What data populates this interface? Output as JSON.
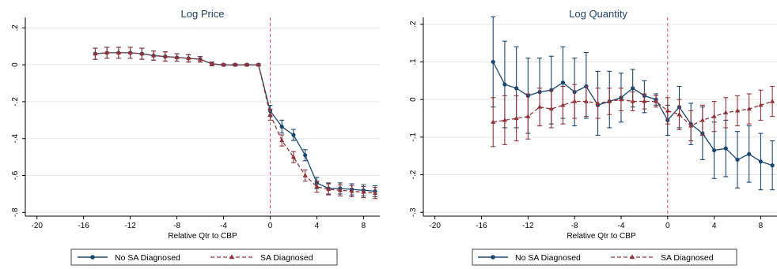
{
  "chart_data": [
    {
      "type": "line",
      "title": "Log Price",
      "xlabel": "Relative Qtr to CBP",
      "ylabel": "",
      "xlim": [
        -21,
        9.4
      ],
      "ylim": [
        -0.82,
        0.24
      ],
      "xticks": [
        -20,
        -16,
        -12,
        -8,
        -4,
        0,
        4,
        8
      ],
      "xtick_labels": [
        "-20",
        "-16",
        "-12",
        "-8",
        "-4",
        "0",
        "4",
        "8"
      ],
      "yticks": [
        0.2,
        0,
        -0.2,
        -0.4,
        -0.6,
        -0.8
      ],
      "ytick_labels": [
        ".2",
        "0",
        "-.2",
        "-.4",
        "-.6",
        "-.8"
      ],
      "grid": true,
      "vline": 0,
      "x": [
        -15,
        -14,
        -13,
        -12,
        -11,
        -10,
        -9,
        -8,
        -7,
        -6,
        -5,
        -4,
        -3,
        -2,
        -1,
        0,
        1,
        2,
        3,
        4,
        5,
        6,
        7,
        8,
        9
      ],
      "series": [
        {
          "name": "No SA Diagnosed",
          "color": "#1a476f",
          "style": "solid",
          "marker": "circle",
          "values": [
            0.06,
            0.065,
            0.065,
            0.065,
            0.06,
            0.05,
            0.045,
            0.04,
            0.035,
            0.03,
            0.005,
            0.0,
            0.0,
            0.0,
            0.0,
            -0.25,
            -0.335,
            -0.38,
            -0.49,
            -0.64,
            -0.67,
            -0.67,
            -0.675,
            -0.68,
            -0.685
          ],
          "ci_low": [
            0.03,
            0.035,
            0.035,
            0.035,
            0.03,
            0.025,
            0.02,
            0.02,
            0.015,
            0.015,
            -0.005,
            -0.005,
            -0.005,
            -0.005,
            -0.005,
            -0.28,
            -0.37,
            -0.41,
            -0.52,
            -0.67,
            -0.7,
            -0.7,
            -0.705,
            -0.71,
            -0.715
          ],
          "ci_high": [
            0.09,
            0.095,
            0.095,
            0.095,
            0.09,
            0.075,
            0.07,
            0.06,
            0.055,
            0.045,
            0.015,
            0.005,
            0.005,
            0.005,
            0.005,
            -0.22,
            -0.3,
            -0.35,
            -0.46,
            -0.61,
            -0.64,
            -0.64,
            -0.645,
            -0.65,
            -0.655
          ]
        },
        {
          "name": "SA Diagnosed",
          "color": "#90353b",
          "style": "dashed",
          "marker": "triangle",
          "values": [
            0.06,
            0.065,
            0.065,
            0.065,
            0.06,
            0.05,
            0.045,
            0.04,
            0.035,
            0.03,
            0.005,
            0.0,
            0.0,
            0.0,
            0.0,
            -0.27,
            -0.41,
            -0.5,
            -0.6,
            -0.66,
            -0.675,
            -0.68,
            -0.685,
            -0.69,
            -0.695
          ],
          "ci_low": [
            0.03,
            0.035,
            0.035,
            0.035,
            0.03,
            0.025,
            0.02,
            0.02,
            0.015,
            0.015,
            -0.005,
            -0.005,
            -0.005,
            -0.005,
            -0.005,
            -0.3,
            -0.44,
            -0.53,
            -0.63,
            -0.69,
            -0.705,
            -0.71,
            -0.715,
            -0.72,
            -0.725
          ],
          "ci_high": [
            0.09,
            0.095,
            0.095,
            0.095,
            0.09,
            0.075,
            0.07,
            0.06,
            0.055,
            0.045,
            0.015,
            0.005,
            0.005,
            0.005,
            0.005,
            -0.24,
            -0.38,
            -0.47,
            -0.57,
            -0.63,
            -0.645,
            -0.65,
            -0.655,
            -0.66,
            -0.665
          ]
        }
      ]
    },
    {
      "type": "line",
      "title": "Log Quantity",
      "xlabel": "Relative Qtr to CBP",
      "ylabel": "",
      "xlim": [
        -21,
        9.4
      ],
      "ylim": [
        -0.31,
        0.21
      ],
      "xticks": [
        -20,
        -16,
        -12,
        -8,
        -4,
        0,
        4,
        8
      ],
      "xtick_labels": [
        "-20",
        "-16",
        "-12",
        "-8",
        "-4",
        "0",
        "4",
        "8"
      ],
      "yticks": [
        0.2,
        0.1,
        0,
        -0.1,
        -0.2,
        -0.3
      ],
      "ytick_labels": [
        ".2",
        ".1",
        "0",
        "-.1",
        "-.2",
        "-.3"
      ],
      "grid": true,
      "vline": 0,
      "x": [
        -15,
        -14,
        -13,
        -12,
        -11,
        -10,
        -9,
        -8,
        -7,
        -6,
        -5,
        -4,
        -3,
        -2,
        -1,
        0,
        1,
        2,
        3,
        4,
        5,
        6,
        7,
        8,
        9
      ],
      "series": [
        {
          "name": "No SA Diagnosed",
          "color": "#1a476f",
          "style": "solid",
          "marker": "circle",
          "values": [
            0.1,
            0.04,
            0.03,
            0.01,
            0.02,
            0.025,
            0.045,
            0.02,
            0.035,
            -0.015,
            -0.005,
            0.005,
            0.03,
            0.01,
            0.0,
            -0.055,
            -0.02,
            -0.065,
            -0.09,
            -0.135,
            -0.13,
            -0.16,
            -0.145,
            -0.165,
            -0.175
          ],
          "ci_low": [
            -0.02,
            -0.075,
            -0.075,
            -0.09,
            -0.07,
            -0.065,
            -0.05,
            -0.07,
            -0.05,
            -0.095,
            -0.075,
            -0.06,
            -0.02,
            -0.035,
            -0.015,
            -0.095,
            -0.075,
            -0.12,
            -0.16,
            -0.21,
            -0.205,
            -0.235,
            -0.22,
            -0.24,
            -0.24
          ],
          "ci_high": [
            0.22,
            0.155,
            0.14,
            0.11,
            0.11,
            0.115,
            0.14,
            0.11,
            0.125,
            0.075,
            0.075,
            0.07,
            0.08,
            0.05,
            0.015,
            -0.015,
            0.035,
            -0.01,
            -0.02,
            -0.06,
            -0.055,
            -0.085,
            -0.07,
            -0.09,
            -0.11
          ]
        },
        {
          "name": "SA Diagnosed",
          "color": "#90353b",
          "style": "dashed",
          "marker": "triangle",
          "values": [
            -0.06,
            -0.055,
            -0.05,
            -0.045,
            -0.02,
            -0.025,
            -0.015,
            -0.005,
            -0.005,
            -0.01,
            -0.005,
            0.0,
            -0.005,
            -0.005,
            -0.005,
            -0.03,
            -0.04,
            -0.07,
            -0.055,
            -0.045,
            -0.035,
            -0.03,
            -0.025,
            -0.015,
            -0.005
          ],
          "ci_low": [
            -0.125,
            -0.12,
            -0.11,
            -0.105,
            -0.07,
            -0.075,
            -0.065,
            -0.05,
            -0.045,
            -0.05,
            -0.04,
            -0.03,
            -0.03,
            -0.025,
            -0.02,
            -0.065,
            -0.08,
            -0.11,
            -0.095,
            -0.085,
            -0.075,
            -0.07,
            -0.065,
            -0.055,
            -0.045
          ],
          "ci_high": [
            0.005,
            0.01,
            0.01,
            0.015,
            0.03,
            0.025,
            0.035,
            0.04,
            0.035,
            0.03,
            0.03,
            0.03,
            0.02,
            0.015,
            0.01,
            0.005,
            0.0,
            -0.03,
            -0.015,
            -0.005,
            0.005,
            0.01,
            0.015,
            0.025,
            0.035
          ]
        }
      ]
    }
  ]
}
